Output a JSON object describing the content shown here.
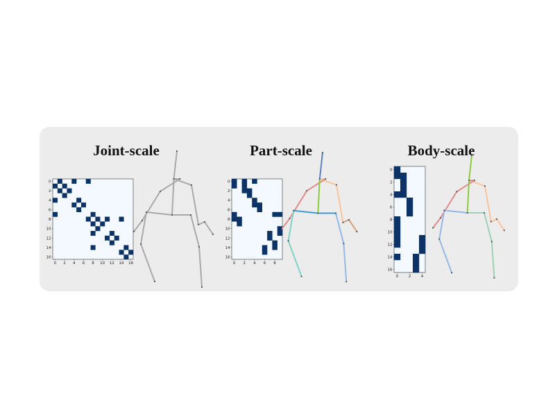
{
  "titles": {
    "joint": "Joint-scale",
    "part": "Part-scale",
    "body": "Body-scale"
  },
  "colors": {
    "panel": "#ececec",
    "matrix_bg": "#f3f9fe",
    "matrix_on": "#0c3266",
    "skeleton_gray": "#a9a9a9",
    "part_colors": [
      "#5b7fc4",
      "#f7c59b",
      "#e58a8a",
      "#8ccc3c",
      "#3f9ad8",
      "#7ed3c6",
      "#94b8e4",
      "#d4a07a",
      "#9bd2b8"
    ],
    "body_colors": [
      "#8ccc3c",
      "#f7c59b",
      "#e58a8a",
      "#94b8e4",
      "#9bd2b8"
    ]
  },
  "joint_matrix": {
    "rows": 17,
    "cols": 17,
    "x_ticks": [
      "0",
      "2",
      "4",
      "6",
      "8",
      "10",
      "12",
      "14",
      "16"
    ],
    "y_ticks": [
      "0",
      "2",
      "4",
      "6",
      "8",
      "10",
      "12",
      "14",
      "16"
    ],
    "cells": [
      [
        0,
        1
      ],
      [
        0,
        4
      ],
      [
        0,
        7
      ],
      [
        1,
        0
      ],
      [
        1,
        2
      ],
      [
        2,
        1
      ],
      [
        2,
        3
      ],
      [
        3,
        2
      ],
      [
        4,
        0
      ],
      [
        4,
        5
      ],
      [
        5,
        4
      ],
      [
        5,
        6
      ],
      [
        6,
        5
      ],
      [
        7,
        0
      ],
      [
        7,
        8
      ],
      [
        8,
        7
      ],
      [
        8,
        9
      ],
      [
        8,
        11
      ],
      [
        8,
        14
      ],
      [
        9,
        8
      ],
      [
        9,
        10
      ],
      [
        10,
        9
      ],
      [
        11,
        8
      ],
      [
        11,
        12
      ],
      [
        12,
        11
      ],
      [
        12,
        13
      ],
      [
        13,
        12
      ],
      [
        14,
        8
      ],
      [
        14,
        15
      ],
      [
        15,
        14
      ],
      [
        15,
        16
      ],
      [
        16,
        15
      ]
    ]
  },
  "part_matrix": {
    "rows": 17,
    "cols": 10,
    "x_ticks": [
      "0",
      "2",
      "4",
      "6",
      "8"
    ],
    "y_ticks": [
      "0",
      "2",
      "4",
      "6",
      "8",
      "10",
      "12",
      "14",
      "16"
    ],
    "cells": [
      [
        0,
        0
      ],
      [
        0,
        2
      ],
      [
        0,
        4
      ],
      [
        1,
        0
      ],
      [
        1,
        2
      ],
      [
        2,
        2
      ],
      [
        2,
        3
      ],
      [
        3,
        3
      ],
      [
        4,
        4
      ],
      [
        5,
        4
      ],
      [
        5,
        5
      ],
      [
        6,
        5
      ],
      [
        7,
        0
      ],
      [
        7,
        8
      ],
      [
        7,
        9
      ],
      [
        8,
        0
      ],
      [
        8,
        1
      ],
      [
        9,
        1
      ],
      [
        10,
        9
      ],
      [
        11,
        7
      ],
      [
        11,
        9
      ],
      [
        12,
        7
      ],
      [
        13,
        8
      ],
      [
        14,
        6
      ],
      [
        14,
        8
      ],
      [
        15,
        6
      ]
    ]
  },
  "body_matrix": {
    "rows": 17,
    "cols": 5,
    "x_ticks": [
      "0",
      "2",
      "4"
    ],
    "y_ticks": [
      "0",
      "2",
      "4",
      "6",
      "8",
      "10",
      "12",
      "14",
      "16"
    ],
    "cells": [
      [
        0,
        0
      ],
      [
        1,
        0
      ],
      [
        1,
        1
      ],
      [
        2,
        1
      ],
      [
        3,
        1
      ],
      [
        4,
        0
      ],
      [
        4,
        1
      ],
      [
        5,
        2
      ],
      [
        6,
        2
      ],
      [
        7,
        2
      ],
      [
        8,
        0
      ],
      [
        9,
        0
      ],
      [
        10,
        0
      ],
      [
        11,
        0
      ],
      [
        11,
        4
      ],
      [
        12,
        0
      ],
      [
        12,
        4
      ],
      [
        13,
        4
      ],
      [
        14,
        0
      ],
      [
        14,
        3
      ],
      [
        15,
        3
      ],
      [
        16,
        3
      ]
    ]
  },
  "skeleton": {
    "joints": [
      [
        0,
        -2.1
      ],
      [
        -0.22,
        -0.1
      ],
      [
        1.05,
        0.35
      ],
      [
        1.55,
        3.2
      ],
      [
        0.22,
        -0.1
      ],
      [
        -1.2,
        0.8
      ],
      [
        -2.5,
        2.9
      ],
      [
        -3.1,
        3.7
      ],
      [
        -0.35,
        2.5
      ],
      [
        -2.2,
        2.3
      ],
      [
        -2.6,
        4.6
      ],
      [
        -1.6,
        7.3
      ],
      [
        1.0,
        2.5
      ],
      [
        1.6,
        4.8
      ],
      [
        1.8,
        7.7
      ],
      [
        2.0,
        3.0
      ],
      [
        2.6,
        3.9
      ]
    ],
    "bones": [
      [
        0,
        1
      ],
      [
        1,
        2
      ],
      [
        2,
        3
      ],
      [
        1,
        4
      ],
      [
        4,
        5
      ],
      [
        5,
        6
      ],
      [
        6,
        7
      ],
      [
        1,
        8
      ],
      [
        8,
        9
      ],
      [
        9,
        10
      ],
      [
        10,
        11
      ],
      [
        8,
        12
      ],
      [
        12,
        13
      ],
      [
        13,
        14
      ],
      [
        3,
        15
      ],
      [
        15,
        16
      ]
    ],
    "part_groups": [
      0,
      1,
      1,
      1,
      2,
      2,
      2,
      3,
      4,
      5,
      5,
      4,
      6,
      6,
      7,
      7
    ],
    "body_groups": [
      0,
      1,
      1,
      2,
      2,
      2,
      2,
      0,
      3,
      3,
      3,
      4,
      4,
      4,
      1,
      1
    ]
  }
}
